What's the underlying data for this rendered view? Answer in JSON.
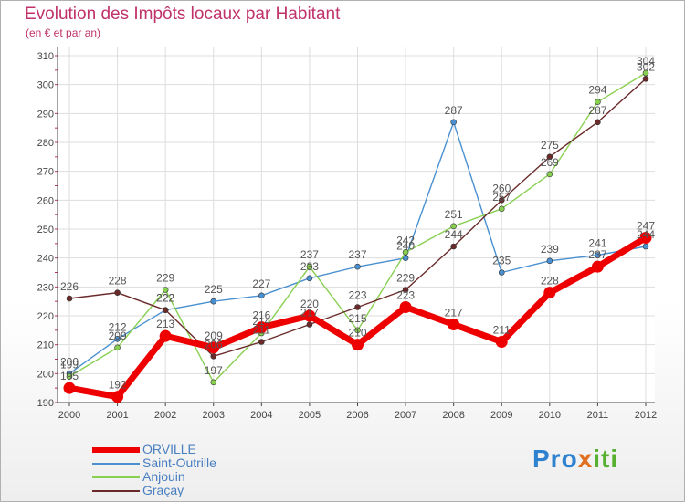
{
  "title": "Evolution des Impôts locaux par Habitant",
  "subtitle": "(en € et par an)",
  "logo": "Proxiti",
  "chart_data": {
    "type": "line",
    "x": [
      "2000",
      "2001",
      "2002",
      "2003",
      "2004",
      "2005",
      "2006",
      "2007",
      "2008",
      "2009",
      "2010",
      "2011",
      "2012"
    ],
    "ylim": [
      190,
      310
    ],
    "yticks": [
      190,
      200,
      210,
      220,
      230,
      240,
      250,
      260,
      270,
      280,
      290,
      300,
      310
    ],
    "grid": true,
    "series": [
      {
        "name": "Saint-Outrille",
        "color": "#4a90d0",
        "values": [
          200,
          212,
          222,
          225,
          227,
          233,
          237,
          240,
          287,
          235,
          239,
          241,
          244
        ]
      },
      {
        "name": "Anjouin",
        "color": "#88d050",
        "values": [
          199,
          209,
          229,
          197,
          214,
          237,
          215,
          242,
          251,
          257,
          269,
          294,
          304
        ]
      },
      {
        "name": "Graçay",
        "color": "#6a2a2a",
        "values": [
          226,
          228,
          222,
          206,
          211,
          217,
          223,
          229,
          244,
          260,
          275,
          287,
          302
        ]
      },
      {
        "name": "ORVILLE",
        "color": "#ee0000",
        "values": [
          195,
          192,
          213,
          209,
          216,
          220,
          210,
          223,
          217,
          211,
          228,
          237,
          247
        ]
      }
    ],
    "legend_order": [
      "ORVILLE",
      "Saint-Outrille",
      "Anjouin",
      "Graçay"
    ]
  }
}
